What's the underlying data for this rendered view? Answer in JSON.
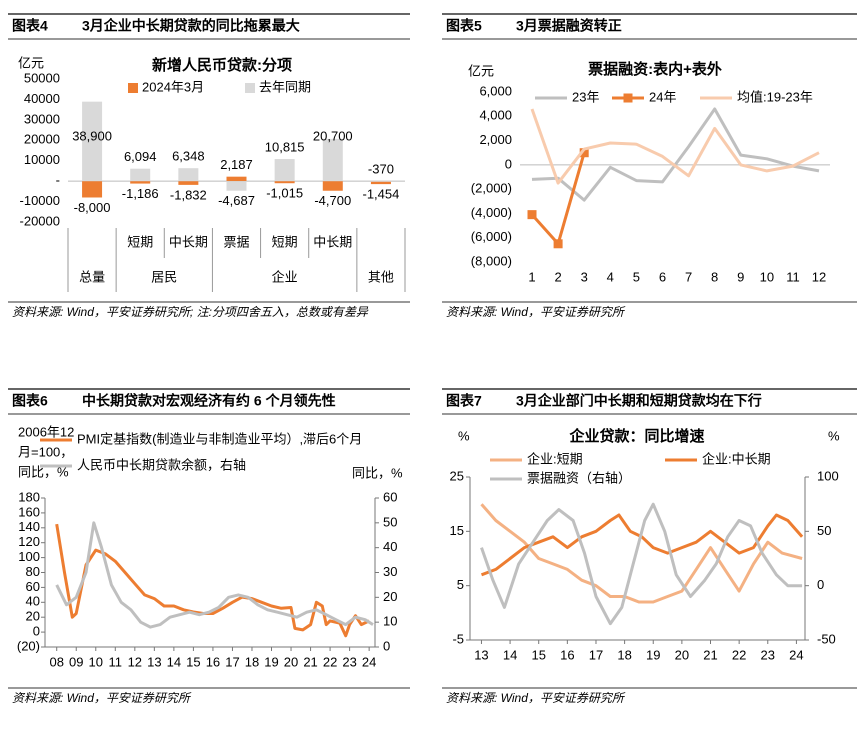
{
  "chart_data": [
    {
      "type": "bar",
      "label": "图表4",
      "caption": "3月企业中长期贷款的同比拖累最大",
      "title": "新增人民币贷款:分项",
      "y_unit": "亿元",
      "source": "资料来源: Wind，平安证券研究所; 注:分项四舍五入，总数或有差异",
      "categories": [
        null,
        "短期",
        "中长期",
        "票据",
        "短期",
        "中长期",
        null
      ],
      "groups": [
        {
          "name": "总量",
          "count": 1
        },
        {
          "name": "居民",
          "count": 2
        },
        {
          "name": "企业",
          "count": 3
        },
        {
          "name": "其他",
          "count": 1
        }
      ],
      "series": [
        {
          "name": "2024年3月",
          "color": "#ED7D31",
          "label_color": "#C00000",
          "values": [
            -8000,
            -1186,
            -1832,
            2187,
            -1015,
            -4700,
            -1454
          ],
          "value_labels": [
            "-8,000",
            "-1,186",
            "-1,832",
            "2,187",
            "-1,015",
            "-4,700",
            "-1,454"
          ]
        },
        {
          "name": "去年同期",
          "color": "#D9D9D9",
          "label_color": "#000000",
          "values": [
            38900,
            6094,
            6348,
            -4687,
            10815,
            20700,
            -370
          ],
          "value_labels": [
            "38,900",
            "6,094",
            "6,348",
            "-4,687",
            "10,815",
            "20,700",
            "-370"
          ]
        }
      ],
      "ylim": [
        -20000,
        50000
      ],
      "yticks": [
        -20000,
        -10000,
        {
          "value": 0,
          "label": "-"
        },
        10000,
        20000,
        30000,
        40000,
        50000
      ],
      "zero_line": true
    },
    {
      "type": "line",
      "label": "图表5",
      "caption": "3月票据融资转正",
      "title": "票据融资:表内+表外",
      "y_unit": "亿元",
      "source": "资料来源: Wind，平安证券研究所",
      "x": [
        1,
        2,
        3,
        4,
        5,
        6,
        7,
        8,
        9,
        10,
        11,
        12
      ],
      "series": [
        {
          "name": "23年",
          "color": "#BFBFBF",
          "values": [
            -1200,
            -1100,
            -2900,
            -200,
            -1300,
            -1400,
            1500,
            4600,
            800,
            500,
            -100,
            -500
          ]
        },
        {
          "name": "24年",
          "color": "#ED7D31",
          "marker": true,
          "values": [
            -4100,
            -6500,
            1000,
            null,
            null,
            null,
            null,
            null,
            null,
            null,
            null,
            null
          ]
        },
        {
          "name": "均值:19-23年",
          "color": "#F8CBAD",
          "values": [
            4600,
            -1500,
            1300,
            1800,
            1700,
            700,
            -900,
            3000,
            0,
            -500,
            -100,
            1000
          ]
        }
      ],
      "xlim": [
        0.54,
        12.42
      ],
      "xticks": [
        1,
        2,
        3,
        4,
        5,
        6,
        7,
        8,
        9,
        10,
        11,
        12
      ],
      "ylim": [
        -8000,
        6000
      ],
      "yticks": [
        {
          "value": -8000,
          "label": "(8,000)"
        },
        {
          "value": -6000,
          "label": "(6,000)"
        },
        {
          "value": -4000,
          "label": "(4,000)"
        },
        {
          "value": -2000,
          "label": "(2,000)"
        },
        0,
        {
          "value": 2000,
          "label": "2,000"
        },
        {
          "value": 4000,
          "label": "4,000"
        },
        {
          "value": 6000,
          "label": "6,000"
        }
      ],
      "negative_tick_color": "#C00000",
      "zero_line": true
    },
    {
      "type": "line",
      "label": "图表6",
      "caption": "中长期贷款对宏观经济有约 6 个月领先性",
      "y_label_lines": [
        "2006年12",
        "月=100，",
        "同比，%"
      ],
      "y2_unit": "同比，%",
      "source": "资料来源: Wind，平安证券研究所",
      "series": [
        {
          "name": "PMI定基指数(制造业与非制造业平均）,滞后6个月",
          "color": "#ED7D31",
          "x": [
            2008.0,
            2008.4,
            2008.8,
            2009.0,
            2009.5,
            2010.0,
            2010.5,
            2011.0,
            2011.5,
            2012.0,
            2012.5,
            2013.0,
            2013.5,
            2014.0,
            2014.5,
            2015.0,
            2015.5,
            2016.0,
            2016.5,
            2017.0,
            2017.5,
            2018.0,
            2018.5,
            2019.0,
            2019.5,
            2020.0,
            2020.2,
            2020.6,
            2021.0,
            2021.3,
            2021.6,
            2021.8,
            2022.0,
            2022.5,
            2022.8,
            2023.0,
            2023.3,
            2023.6,
            2024.0
          ],
          "values": [
            145,
            80,
            20,
            25,
            90,
            110,
            105,
            95,
            80,
            65,
            50,
            45,
            35,
            35,
            30,
            27,
            25,
            25,
            32,
            40,
            47,
            45,
            40,
            35,
            32,
            33,
            5,
            3,
            10,
            40,
            35,
            10,
            15,
            12,
            -5,
            10,
            22,
            10,
            15
          ]
        },
        {
          "name": "人民币中长期贷款余额，右轴",
          "color": "#BFBFBF",
          "axis": "y2",
          "x": [
            2008.0,
            2008.5,
            2009.0,
            2009.5,
            2009.9,
            2010.3,
            2010.8,
            2011.3,
            2011.8,
            2012.3,
            2012.8,
            2013.3,
            2013.8,
            2014.3,
            2014.8,
            2015.3,
            2015.8,
            2016.3,
            2016.8,
            2017.3,
            2017.8,
            2018.3,
            2018.8,
            2019.3,
            2019.8,
            2020.3,
            2020.8,
            2021.3,
            2021.8,
            2022.3,
            2022.8,
            2023.3,
            2023.8,
            2024.2
          ],
          "values": [
            25,
            17,
            20,
            30,
            50,
            40,
            25,
            18,
            15,
            10,
            8,
            9,
            12,
            13,
            14,
            13,
            14,
            16,
            20,
            21,
            20,
            17,
            15,
            14,
            13,
            12,
            14,
            15,
            13,
            11,
            9,
            12,
            11,
            9
          ]
        }
      ],
      "xlim": [
        2007.4,
        2024.3
      ],
      "xticks": [
        {
          "value": 2008,
          "label": "08"
        },
        {
          "value": 2009,
          "label": "09"
        },
        {
          "value": 2010,
          "label": "10"
        },
        {
          "value": 2011,
          "label": "11"
        },
        {
          "value": 2012,
          "label": "12"
        },
        {
          "value": 2013,
          "label": "13"
        },
        {
          "value": 2014,
          "label": "14"
        },
        {
          "value": 2015,
          "label": "15"
        },
        {
          "value": 2016,
          "label": "16"
        },
        {
          "value": 2017,
          "label": "17"
        },
        {
          "value": 2018,
          "label": "18"
        },
        {
          "value": 2019,
          "label": "19"
        },
        {
          "value": 2020,
          "label": "20"
        },
        {
          "value": 2021,
          "label": "21"
        },
        {
          "value": 2022,
          "label": "22"
        },
        {
          "value": 2023,
          "label": "23"
        },
        {
          "value": 2024,
          "label": "24"
        }
      ],
      "ylim": [
        -20,
        180
      ],
      "yticks": [
        {
          "value": -20,
          "label": "(20)"
        },
        0,
        20,
        40,
        60,
        80,
        100,
        120,
        140,
        160,
        180
      ],
      "y2lim": [
        0,
        60
      ],
      "y2ticks": [
        0,
        10,
        20,
        30,
        40,
        50,
        60
      ],
      "negative_tick_color": "#C00000",
      "frame": true
    },
    {
      "type": "line",
      "label": "图表7",
      "caption": "3月企业部门中长期和短期贷款均在下行",
      "title": "企业贷款：同比增速",
      "y_unit": "%",
      "y2_unit": "%",
      "source": "资料来源: Wind，平安证券研究所",
      "series": [
        {
          "name": "企业:短期",
          "color": "#F4B183",
          "x": [
            2013.0,
            2013.5,
            2014.0,
            2014.5,
            2015.0,
            2015.5,
            2016.0,
            2016.5,
            2017.0,
            2017.5,
            2018.0,
            2018.5,
            2019.0,
            2019.5,
            2020.0,
            2020.5,
            2021.0,
            2021.5,
            2022.0,
            2022.5,
            2023.0,
            2023.5,
            2024.2
          ],
          "values": [
            20,
            17,
            15,
            13,
            10,
            9,
            8,
            6,
            5,
            3,
            3,
            2,
            2,
            3,
            4,
            8,
            12,
            8,
            4,
            9,
            13,
            11,
            10
          ]
        },
        {
          "name": "企业:中长期",
          "color": "#ED7D31",
          "x": [
            2013.0,
            2013.5,
            2014.0,
            2014.5,
            2015.0,
            2015.5,
            2016.0,
            2016.5,
            2017.0,
            2017.5,
            2017.8,
            2018.2,
            2018.6,
            2019.0,
            2019.5,
            2020.0,
            2020.5,
            2021.0,
            2021.5,
            2022.0,
            2022.5,
            2023.0,
            2023.3,
            2023.7,
            2024.2
          ],
          "values": [
            7,
            8,
            10,
            12,
            13,
            14,
            12,
            14,
            15,
            17,
            18,
            15,
            14,
            12,
            11,
            12,
            13,
            15,
            13,
            11,
            12,
            16,
            18,
            17,
            14
          ]
        },
        {
          "name": "票据融资（右轴）",
          "color": "#BFBFBF",
          "axis": "y2",
          "x": [
            2013.0,
            2013.4,
            2013.8,
            2014.3,
            2014.8,
            2015.3,
            2015.7,
            2016.2,
            2016.6,
            2017.0,
            2017.5,
            2017.9,
            2018.3,
            2018.7,
            2019.0,
            2019.4,
            2019.8,
            2020.3,
            2020.8,
            2021.2,
            2021.6,
            2022.0,
            2022.4,
            2022.8,
            2023.3,
            2023.7,
            2024.2
          ],
          "values": [
            35,
            5,
            -20,
            20,
            40,
            60,
            70,
            60,
            30,
            -10,
            -35,
            -20,
            20,
            60,
            75,
            50,
            10,
            -10,
            5,
            20,
            45,
            60,
            55,
            30,
            10,
            0,
            0
          ]
        }
      ],
      "xlim": [
        2012.6,
        2024.3
      ],
      "xticks": [
        {
          "value": 2013,
          "label": "13"
        },
        {
          "value": 2014,
          "label": "14"
        },
        {
          "value": 2015,
          "label": "15"
        },
        {
          "value": 2016,
          "label": "16"
        },
        {
          "value": 2017,
          "label": "17"
        },
        {
          "value": 2018,
          "label": "18"
        },
        {
          "value": 2019,
          "label": "19"
        },
        {
          "value": 2020,
          "label": "20"
        },
        {
          "value": 2021,
          "label": "21"
        },
        {
          "value": 2022,
          "label": "22"
        },
        {
          "value": 2023,
          "label": "23"
        },
        {
          "value": 2024,
          "label": "24"
        }
      ],
      "ylim": [
        -5,
        25
      ],
      "yticks": [
        -5,
        5,
        15,
        25
      ],
      "y2lim": [
        -50,
        100
      ],
      "y2ticks": [
        -50,
        0,
        50,
        100
      ],
      "frame": true
    }
  ]
}
